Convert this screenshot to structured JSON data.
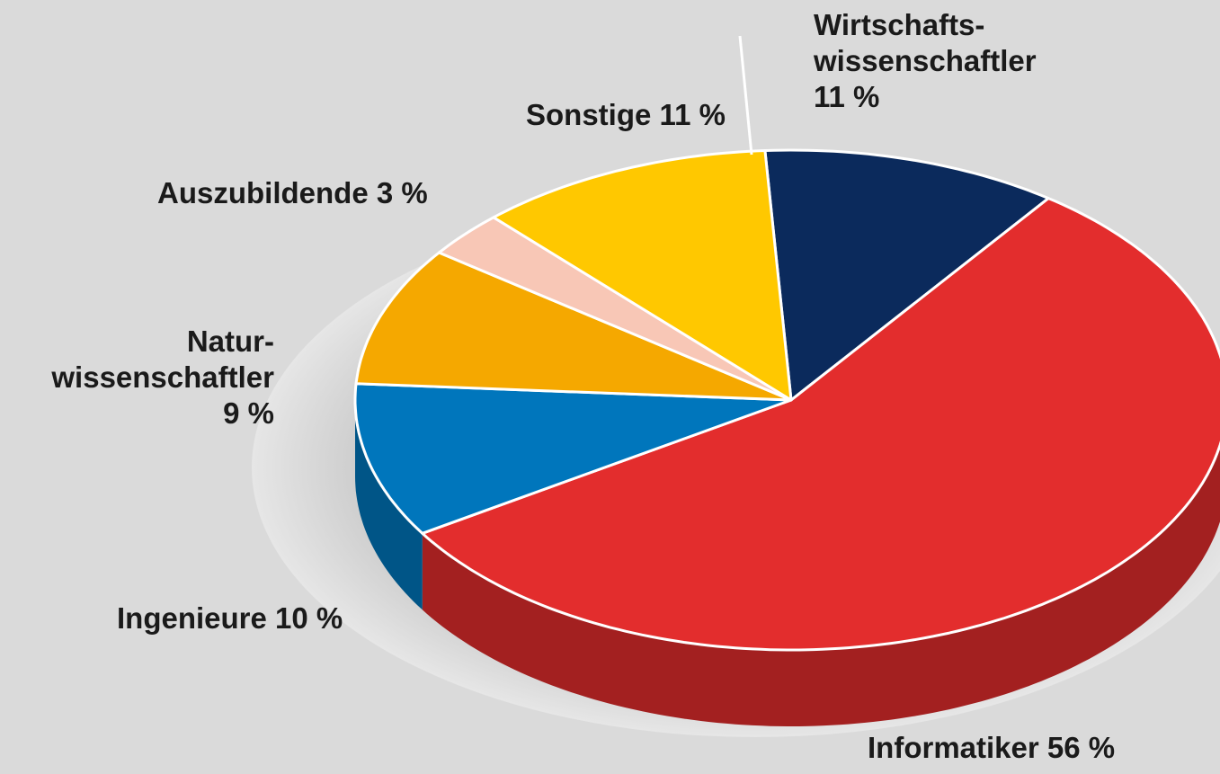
{
  "chart_data": {
    "type": "pie",
    "categories": [
      "Wirtschafts-\nwissenschaftler",
      "Informatiker",
      "Ingenieure",
      "Natur-\nwissenschaftler",
      "Auszubildende",
      "Sonstige"
    ],
    "values": [
      11,
      56,
      10,
      9,
      3,
      11
    ],
    "value_labels": [
      "11 %",
      "56 %",
      "10 %",
      "9 %",
      "3 %",
      "11 %"
    ],
    "colors": [
      "#0b2a5c",
      "#e32d2d",
      "#0076bc",
      "#f5a800",
      "#f8c7b6",
      "#ffc800"
    ]
  }
}
